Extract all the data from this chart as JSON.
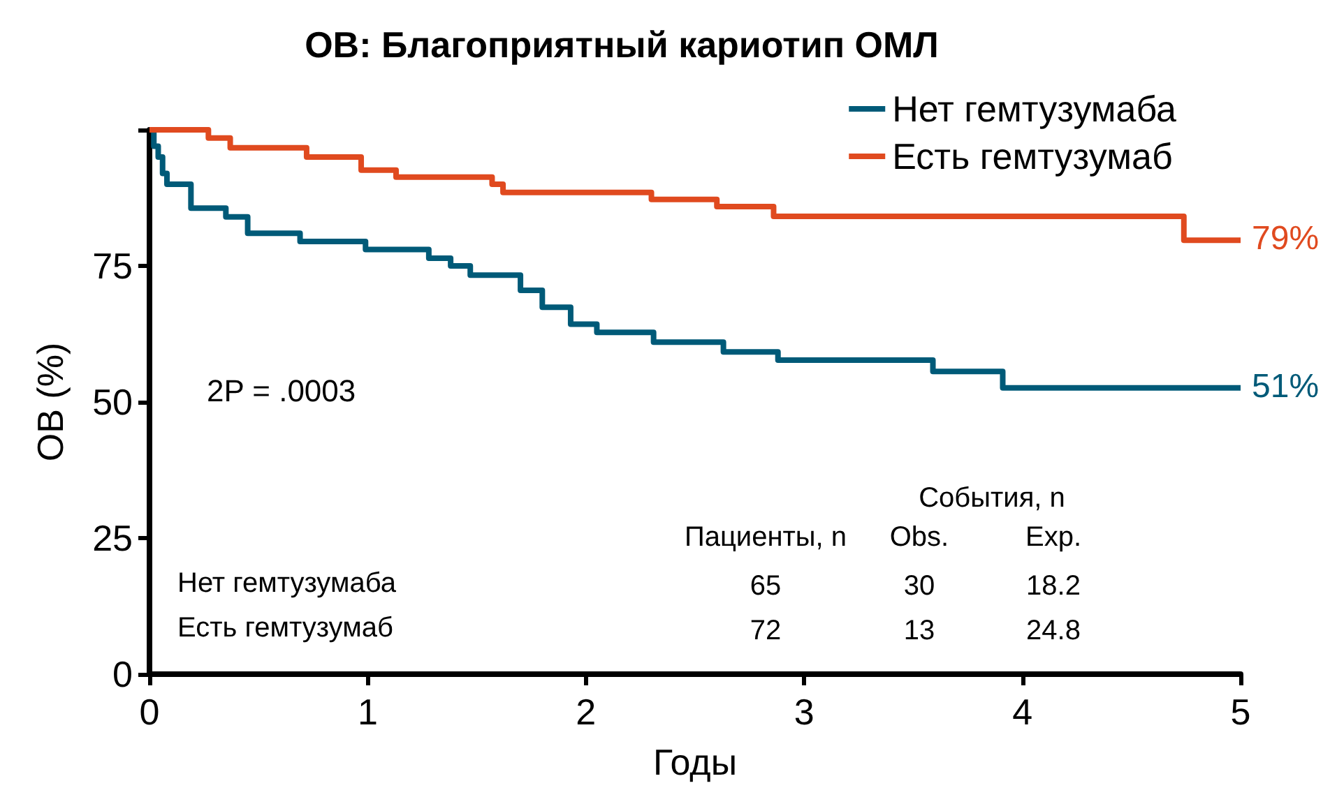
{
  "chart_data": {
    "type": "step",
    "title": "ОВ: Благоприятный кариотип ОМЛ",
    "xlabel": "Годы",
    "ylabel": "ОВ (%)",
    "xlim": [
      0,
      5
    ],
    "xticks": [
      0,
      1,
      2,
      3,
      4,
      5
    ],
    "ylim": [
      0,
      100
    ],
    "yticks": [
      0,
      25,
      50,
      75,
      {
        "value": 100,
        "label": null
      }
    ],
    "grid": false,
    "legend": "top right",
    "marker": "none",
    "line_style": "solid",
    "series": [
      {
        "name": "Нет гемтузумаба",
        "color": "#005a78",
        "x": [
          0,
          0.02,
          0.04,
          0.06,
          0.08,
          0.19,
          0.35,
          0.45,
          0.69,
          0.99,
          1.28,
          1.38,
          1.47,
          1.7,
          1.8,
          1.93,
          2.05,
          2.31,
          2.63,
          2.88,
          3.59,
          3.91,
          5
        ],
        "values": [
          100,
          97,
          95,
          92,
          90,
          85.6,
          84,
          81,
          79.5,
          78,
          76.4,
          75,
          73.3,
          70.5,
          67.4,
          64.3,
          62.8,
          61,
          59.2,
          57.7,
          55.6,
          52.6,
          52.6
        ]
      },
      {
        "name": "Есть гемтузумаб",
        "color": "#e04a1f",
        "x": [
          0,
          0.27,
          0.37,
          0.72,
          0.97,
          1.13,
          1.57,
          1.62,
          2.3,
          2.6,
          2.86,
          4.74,
          5
        ],
        "values": [
          100,
          98.5,
          96.7,
          95,
          92.6,
          91.3,
          90,
          88.5,
          87.2,
          85.9,
          84.1,
          79.7,
          79.7
        ]
      }
    ],
    "annotations": [
      {
        "text": "51%",
        "x": 5,
        "y": 52.6
      },
      {
        "text": "79%",
        "x": 5,
        "y": 79.7
      },
      "2P = .0003",
      "События, n",
      "Пациенты, n",
      "Obs.",
      "Exp.",
      "Нет гемтузумаба",
      "65",
      "30",
      "18.2",
      "Есть гемтузумаб",
      "72",
      "13",
      "24.8"
    ]
  }
}
